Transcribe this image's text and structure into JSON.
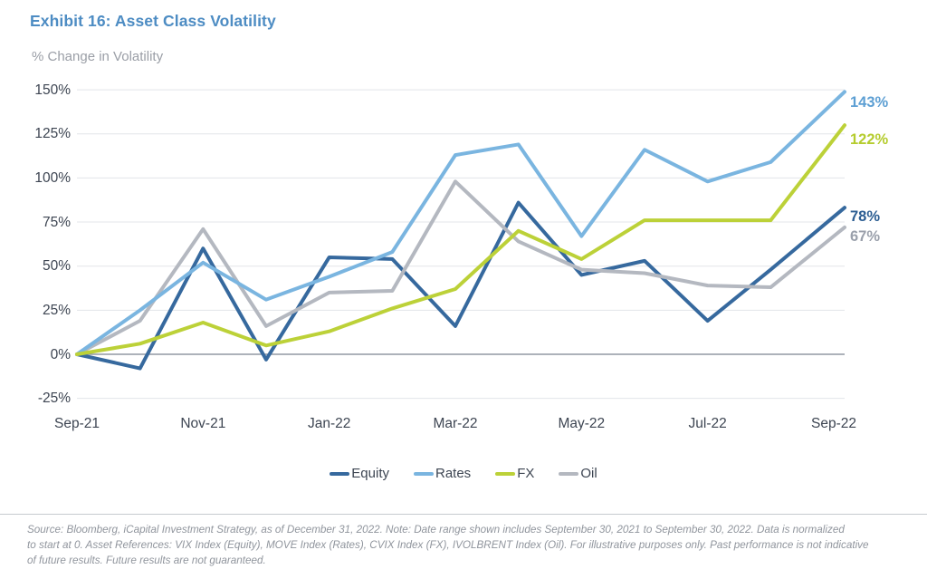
{
  "page": {
    "title": "Exhibit 16: Asset Class Volatility",
    "subtitle": "% Change in Volatility"
  },
  "chart_data": {
    "type": "line",
    "title": "Exhibit 16: Asset Class Volatility",
    "ylabel": "% Change in Volatility",
    "x": [
      "Sep-21",
      "Oct-21",
      "Nov-21",
      "Dec-21",
      "Jan-22",
      "Feb-22",
      "Mar-22",
      "Apr-22",
      "May-22",
      "Jun-22",
      "Jul-22",
      "Aug-22",
      "Sep-22"
    ],
    "x_ticks_shown": [
      {
        "index": 0,
        "label": "Sep-21"
      },
      {
        "index": 2,
        "label": "Nov-21"
      },
      {
        "index": 4,
        "label": "Jan-22"
      },
      {
        "index": 6,
        "label": "Mar-22"
      },
      {
        "index": 8,
        "label": "May-22"
      },
      {
        "index": 10,
        "label": "Jul-22"
      },
      {
        "index": 12,
        "label": "Sep-22"
      }
    ],
    "ylim": [
      -25,
      150
    ],
    "yticks": [
      150,
      125,
      100,
      75,
      50,
      25,
      0,
      -25
    ],
    "ytick_suffix": "%",
    "grid": true,
    "legend_position": "bottom",
    "series": [
      {
        "name": "Equity",
        "color": "#36699e",
        "label_color": "#2b5d92",
        "end_label": "78%",
        "values": [
          0,
          -8,
          60,
          -3,
          55,
          54,
          16,
          86,
          45,
          53,
          19,
          48,
          78
        ]
      },
      {
        "name": "Rates",
        "color": "#7ab5e0",
        "label_color": "#5d9fd3",
        "end_label": "143%",
        "values": [
          0,
          25,
          52,
          31,
          44,
          58,
          113,
          119,
          67,
          116,
          98,
          109,
          143
        ]
      },
      {
        "name": "FX",
        "color": "#bcd138",
        "label_color": "#b5cc2e",
        "end_label": "122%",
        "values": [
          0,
          6,
          18,
          5,
          13,
          26,
          37,
          70,
          54,
          76,
          76,
          76,
          122
        ]
      },
      {
        "name": "Oil",
        "color": "#b4b8c0",
        "label_color": "#9aa0ab",
        "end_label": "67%",
        "values": [
          0,
          19,
          71,
          16,
          35,
          36,
          98,
          64,
          48,
          46,
          39,
          38,
          67
        ]
      }
    ],
    "colors": {
      "gridline": "#e3e5e9",
      "zero_line": "#7c8390",
      "axis_text": "#3d4552",
      "title": "#4d8cc3",
      "subtitle": "#9a9ea6"
    }
  },
  "footer": {
    "lines": [
      "Source: Bloomberg, iCapital Investment Strategy, as of December 31, 2022. Note: Date range shown includes September 30, 2021 to September 30, 2022. Data is normalized",
      "to start at 0. Asset References: VIX Index (Equity), MOVE Index (Rates), CVIX Index (FX), IVOLBRENT Index (Oil). For illustrative purposes only. Past performance is not indicative",
      "of future results. Future results are not guaranteed."
    ]
  }
}
